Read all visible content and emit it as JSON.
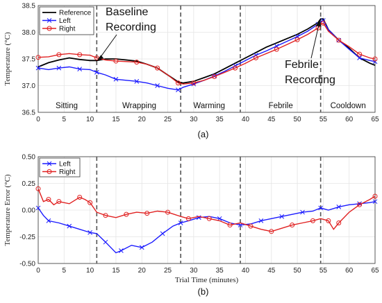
{
  "chart_data": [
    {
      "type": "line",
      "caption": "(a)",
      "ylabel": "Temperature (°C)",
      "xlabel": "",
      "xlim": [
        0,
        65
      ],
      "ylim": [
        36.5,
        38.5
      ],
      "xticks": [
        "0",
        "5",
        "10",
        "15",
        "20",
        "25",
        "30",
        "35",
        "40",
        "45",
        "50",
        "55",
        "60",
        "65"
      ],
      "yticks": [
        "36.5",
        "37.0",
        "37.5",
        "38.0",
        "38.5"
      ],
      "grid": true,
      "legend": "top-left",
      "vlines": [
        11.3,
        27.5,
        39.0,
        54.5
      ],
      "phases": [
        {
          "label": "Sitting",
          "x": 5.5
        },
        {
          "label": "Wrapping",
          "x": 19.5
        },
        {
          "label": "Warming",
          "x": 33.0
        },
        {
          "label": "Febrile",
          "x": 46.8
        },
        {
          "label": "Cooldown",
          "x": 59.8
        }
      ],
      "annotations": [
        {
          "line1": "Baseline",
          "line2": "Recording",
          "point": [
            11.3,
            37.47
          ]
        },
        {
          "line1": "Febrile",
          "line2": "Recording",
          "point": [
            54.5,
            38.25
          ]
        }
      ],
      "series": [
        {
          "name": "Reference",
          "color": "#000000",
          "marker": "none",
          "x": [
            0,
            2,
            4,
            6,
            8,
            10,
            11.3,
            13,
            15,
            17,
            19,
            21,
            23,
            25,
            27,
            28,
            30,
            32,
            34,
            36,
            38,
            40,
            42,
            44,
            46,
            48,
            50,
            52,
            54,
            54.5,
            55,
            56,
            58,
            60,
            62,
            64,
            65
          ],
          "y": [
            37.35,
            37.43,
            37.48,
            37.52,
            37.49,
            37.47,
            37.47,
            37.5,
            37.5,
            37.48,
            37.46,
            37.4,
            37.33,
            37.2,
            37.07,
            37.05,
            37.08,
            37.15,
            37.22,
            37.32,
            37.42,
            37.52,
            37.62,
            37.72,
            37.8,
            37.88,
            37.96,
            38.06,
            38.18,
            38.25,
            38.25,
            38.05,
            37.85,
            37.7,
            37.52,
            37.42,
            37.38
          ]
        },
        {
          "name": "Left",
          "color": "#1a1aff",
          "marker": "x",
          "x": [
            0,
            2,
            4,
            6,
            8,
            10,
            11.3,
            13,
            15,
            17,
            19,
            21,
            23,
            25,
            27,
            28,
            30,
            32,
            34,
            36,
            38,
            40,
            42,
            44,
            46,
            48,
            50,
            52,
            54,
            54.5,
            55,
            56,
            58,
            60,
            62,
            64,
            65
          ],
          "y": [
            37.33,
            37.3,
            37.33,
            37.35,
            37.31,
            37.3,
            37.25,
            37.2,
            37.12,
            37.1,
            37.08,
            37.05,
            37.0,
            36.95,
            36.92,
            36.97,
            37.03,
            37.1,
            37.18,
            37.27,
            37.37,
            37.47,
            37.57,
            37.65,
            37.74,
            37.83,
            37.92,
            38.02,
            38.15,
            38.2,
            38.22,
            38.05,
            37.85,
            37.68,
            37.52,
            37.47,
            37.45
          ]
        },
        {
          "name": "Right",
          "color": "#e02020",
          "marker": "o",
          "x": [
            0,
            2,
            4,
            6,
            8,
            10,
            11.3,
            13,
            15,
            17,
            19,
            21,
            23,
            25,
            27,
            28,
            30,
            32,
            34,
            36,
            38,
            40,
            42,
            44,
            46,
            48,
            50,
            52,
            54,
            54.5,
            55,
            56,
            58,
            60,
            62,
            64,
            65
          ],
          "y": [
            37.53,
            37.54,
            37.58,
            37.6,
            37.58,
            37.57,
            37.52,
            37.48,
            37.46,
            37.45,
            37.44,
            37.4,
            37.33,
            37.2,
            37.05,
            37.03,
            37.05,
            37.1,
            37.17,
            37.25,
            37.33,
            37.42,
            37.52,
            37.6,
            37.68,
            37.77,
            37.86,
            37.96,
            38.08,
            38.15,
            38.17,
            38.02,
            37.85,
            37.73,
            37.59,
            37.52,
            37.5
          ]
        }
      ]
    },
    {
      "type": "line",
      "caption": "(b)",
      "ylabel": "Temperature Error (°C)",
      "xlabel": "Trial Time (minutes)",
      "xlim": [
        0,
        65
      ],
      "ylim": [
        -0.5,
        0.5
      ],
      "xticks": [
        "0",
        "5",
        "10",
        "15",
        "20",
        "25",
        "30",
        "35",
        "40",
        "45",
        "50",
        "55",
        "60",
        "65"
      ],
      "yticks": [
        "-0.50",
        "-0.25",
        "0.00",
        "0.25",
        "0.50"
      ],
      "grid": true,
      "legend": "top-left",
      "vlines": [
        11.3,
        27.5,
        39.0,
        54.5
      ],
      "series": [
        {
          "name": "Left",
          "color": "#1a1aff",
          "marker": "x",
          "x": [
            0,
            1,
            2,
            4,
            6,
            8,
            10,
            11.3,
            13,
            15,
            16,
            18,
            20,
            22,
            24,
            26,
            27.5,
            29,
            31,
            33,
            35,
            37,
            39,
            41,
            43,
            45,
            47,
            49,
            51,
            53,
            54.5,
            56,
            58,
            60,
            62,
            64,
            65
          ],
          "y": [
            0.02,
            -0.05,
            -0.1,
            -0.12,
            -0.15,
            -0.18,
            -0.21,
            -0.22,
            -0.3,
            -0.4,
            -0.38,
            -0.33,
            -0.35,
            -0.3,
            -0.22,
            -0.15,
            -0.12,
            -0.1,
            -0.07,
            -0.06,
            -0.08,
            -0.12,
            -0.14,
            -0.13,
            -0.1,
            -0.08,
            -0.06,
            -0.04,
            -0.02,
            -0.01,
            0.02,
            0.0,
            0.03,
            0.05,
            0.06,
            0.07,
            0.08
          ]
        },
        {
          "name": "Right",
          "color": "#e02020",
          "marker": "o",
          "x": [
            0,
            1,
            2,
            3,
            4,
            6,
            8,
            9,
            10,
            11.3,
            13,
            15,
            17,
            19,
            21,
            23,
            25,
            27.5,
            29,
            31,
            33,
            35,
            37,
            39,
            41,
            43,
            45,
            47,
            49,
            51,
            53,
            54.5,
            56,
            57,
            58,
            60,
            62,
            64,
            65
          ],
          "y": [
            0.2,
            0.08,
            0.1,
            0.05,
            0.08,
            0.06,
            0.12,
            0.1,
            0.07,
            -0.02,
            -0.05,
            -0.07,
            -0.04,
            -0.02,
            -0.03,
            -0.01,
            -0.02,
            -0.06,
            -0.08,
            -0.06,
            -0.08,
            -0.1,
            -0.14,
            -0.12,
            -0.15,
            -0.18,
            -0.2,
            -0.17,
            -0.14,
            -0.12,
            -0.1,
            -0.08,
            -0.1,
            -0.18,
            -0.12,
            -0.02,
            0.05,
            0.1,
            0.13
          ]
        }
      ]
    }
  ]
}
